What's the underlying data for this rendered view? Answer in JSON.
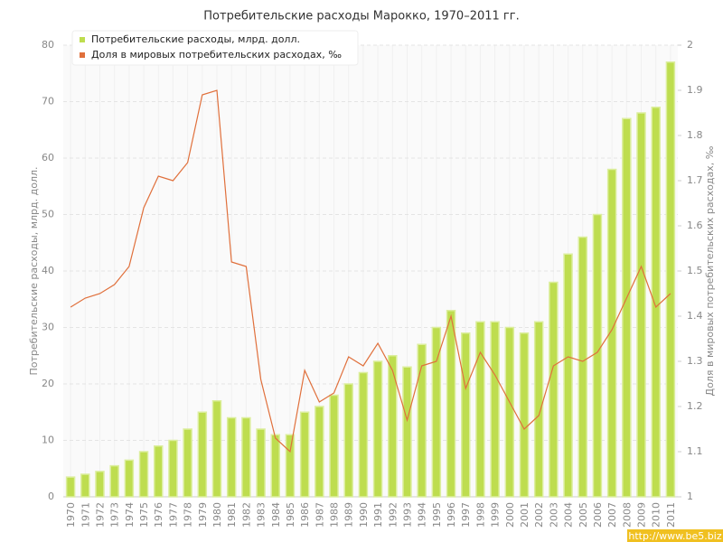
{
  "chart_data": {
    "type": "bar-line",
    "title": "Потребительские расходы Марокко, 1970–2011 гг.",
    "y_label": "Потребительские расходы, млрд. долл.",
    "y2_label": "Доля в мировых потребительских расходах, ‰",
    "watermark": "http://www.be5.biz",
    "categories": [
      "1970",
      "1971",
      "1972",
      "1973",
      "1974",
      "1975",
      "1976",
      "1977",
      "1978",
      "1979",
      "1980",
      "1981",
      "1982",
      "1983",
      "1984",
      "1985",
      "1986",
      "1987",
      "1988",
      "1989",
      "1990",
      "1991",
      "1992",
      "1993",
      "1994",
      "1995",
      "1996",
      "1997",
      "1998",
      "1999",
      "2000",
      "2001",
      "2002",
      "2003",
      "2004",
      "2005",
      "2006",
      "2007",
      "2008",
      "2009",
      "2010",
      "2011"
    ],
    "series": [
      {
        "name": "Потребительские расходы, млрд. долл.",
        "type": "bar",
        "color": "#bedd4f",
        "values": [
          3.5,
          4,
          4.5,
          5.5,
          6.5,
          8,
          9,
          10,
          12,
          15,
          17,
          14,
          14,
          12,
          11,
          11,
          15,
          16,
          18,
          20,
          22,
          24,
          25,
          23,
          27,
          30,
          33,
          29,
          31,
          31,
          30,
          29,
          31,
          38,
          43,
          46,
          50,
          58,
          67,
          68,
          69,
          77
        ]
      },
      {
        "name": "Доля в мировых потребительских расходах, ‰",
        "type": "line",
        "color": "#e0703c",
        "axis": "y2",
        "values": [
          1.42,
          1.44,
          1.45,
          1.47,
          1.51,
          1.64,
          1.71,
          1.7,
          1.74,
          1.89,
          1.9,
          1.52,
          1.51,
          1.26,
          1.13,
          1.1,
          1.28,
          1.21,
          1.23,
          1.31,
          1.29,
          1.34,
          1.28,
          1.17,
          1.29,
          1.3,
          1.4,
          1.24,
          1.32,
          1.27,
          1.21,
          1.15,
          1.18,
          1.29,
          1.31,
          1.3,
          1.32,
          1.37,
          1.44,
          1.51,
          1.42,
          1.45
        ]
      }
    ],
    "ylim": [
      0,
      80
    ],
    "yticks": [
      0,
      10,
      20,
      30,
      40,
      50,
      60,
      70,
      80
    ],
    "y2lim": [
      1,
      2
    ],
    "y2ticks": [
      1,
      1.1,
      1.2,
      1.3,
      1.4,
      1.5,
      1.6,
      1.7,
      1.8,
      1.9,
      2
    ],
    "grid": true,
    "legend": "top-left"
  }
}
